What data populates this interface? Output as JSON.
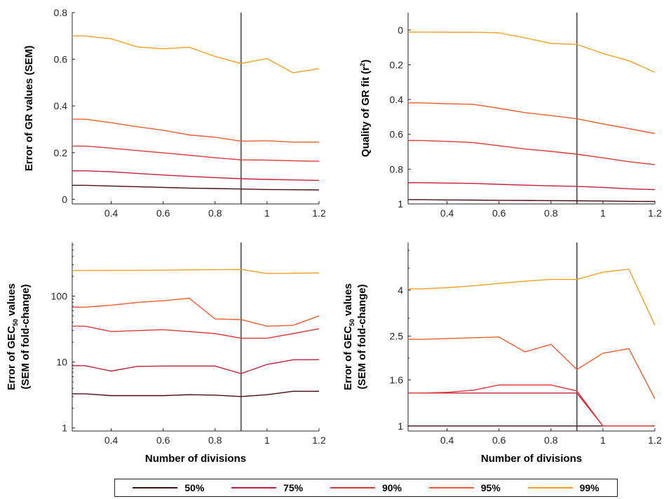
{
  "colors": {
    "50%": "#4a0d14",
    "75%": "#c4203a",
    "90%": "#dc3b36",
    "95%": "#ed5e2e",
    "99%": "#f0a225"
  },
  "legend": {
    "items": [
      "50%",
      "75%",
      "90%",
      "95%",
      "99%"
    ],
    "placement": "bottom"
  },
  "chart_data": [
    {
      "type": "line",
      "ylabel": "Error of GR values (SEM)",
      "xlabel": "",
      "xlim": [
        0.25,
        1.2
      ],
      "ylim": [
        -0.02,
        0.8
      ],
      "xticks": [
        "0.4",
        "0.6",
        "0.8",
        "1",
        "1.2"
      ],
      "yticks": [
        "0",
        "0.2",
        "0.4",
        "0.6",
        "0.8"
      ],
      "vline": 0.9,
      "x": [
        0.25,
        0.3,
        0.4,
        0.5,
        0.6,
        0.7,
        0.8,
        0.9,
        1.0,
        1.1,
        1.2
      ],
      "series": [
        {
          "name": "50%",
          "values": [
            0.06,
            0.06,
            0.057,
            0.054,
            0.051,
            0.048,
            0.046,
            0.044,
            0.042,
            0.041,
            0.04
          ]
        },
        {
          "name": "75%",
          "values": [
            0.122,
            0.122,
            0.118,
            0.111,
            0.104,
            0.098,
            0.093,
            0.088,
            0.085,
            0.083,
            0.081
          ]
        },
        {
          "name": "90%",
          "values": [
            0.228,
            0.228,
            0.219,
            0.209,
            0.199,
            0.189,
            0.178,
            0.169,
            0.168,
            0.165,
            0.163
          ]
        },
        {
          "name": "95%",
          "values": [
            0.343,
            0.343,
            0.328,
            0.311,
            0.296,
            0.276,
            0.266,
            0.249,
            0.251,
            0.245,
            0.245
          ]
        },
        {
          "name": "99%",
          "values": [
            0.7,
            0.7,
            0.688,
            0.653,
            0.645,
            0.652,
            0.612,
            0.582,
            0.603,
            0.542,
            0.56
          ]
        }
      ]
    },
    {
      "type": "line",
      "ylabel": "Quality of GR fit (r²)",
      "xlabel": "",
      "xlim": [
        0.25,
        1.2
      ],
      "ylim": [
        1,
        -0.1
      ],
      "yreverse": true,
      "xticks": [
        "0.4",
        "0.6",
        "0.8",
        "1",
        "1.2"
      ],
      "yticks": [
        "0",
        "0.2",
        "0.4",
        "0.6",
        "0.8",
        "1"
      ],
      "vline": 0.9,
      "x": [
        0.25,
        0.3,
        0.4,
        0.5,
        0.6,
        0.7,
        0.8,
        0.9,
        1.0,
        1.1,
        1.2
      ],
      "series": [
        {
          "name": "50%",
          "values": [
            0.975,
            0.975,
            0.977,
            0.978,
            0.979,
            0.98,
            0.981,
            0.982,
            0.983,
            0.985,
            0.986
          ]
        },
        {
          "name": "75%",
          "values": [
            0.878,
            0.878,
            0.88,
            0.882,
            0.887,
            0.892,
            0.896,
            0.899,
            0.905,
            0.913,
            0.918
          ]
        },
        {
          "name": "90%",
          "values": [
            0.635,
            0.635,
            0.64,
            0.647,
            0.665,
            0.684,
            0.698,
            0.714,
            0.735,
            0.757,
            0.774
          ]
        },
        {
          "name": "95%",
          "values": [
            0.419,
            0.419,
            0.424,
            0.427,
            0.45,
            0.475,
            0.492,
            0.51,
            0.54,
            0.567,
            0.595
          ]
        },
        {
          "name": "99%",
          "values": [
            0.012,
            0.012,
            0.013,
            0.013,
            0.016,
            0.045,
            0.077,
            0.083,
            0.135,
            0.177,
            0.243
          ]
        }
      ]
    },
    {
      "type": "line",
      "ylabel": "Error of GEC50 values",
      "ylabel2": "(SEM of fold-change)",
      "xlabel": "Number of divisions",
      "xlim": [
        0.25,
        1.2
      ],
      "ylim": [
        0.9,
        650
      ],
      "yscale": "log",
      "xticks": [
        "0.4",
        "0.6",
        "0.8",
        "1",
        "1.2"
      ],
      "yticks": [
        "1",
        "10",
        "100"
      ],
      "vline": 0.9,
      "x": [
        0.25,
        0.3,
        0.4,
        0.5,
        0.6,
        0.7,
        0.8,
        0.9,
        1.0,
        1.1,
        1.2
      ],
      "series": [
        {
          "name": "50%",
          "values": [
            3.3,
            3.3,
            3.1,
            3.1,
            3.1,
            3.2,
            3.15,
            3.0,
            3.2,
            3.6,
            3.6
          ]
        },
        {
          "name": "75%",
          "values": [
            8.8,
            8.8,
            7.3,
            8.6,
            8.7,
            8.7,
            8.7,
            6.7,
            9.2,
            10.8,
            10.9
          ]
        },
        {
          "name": "90%",
          "values": [
            35,
            35,
            29,
            30,
            31,
            29,
            27,
            23,
            23,
            27,
            32
          ]
        },
        {
          "name": "95%",
          "values": [
            68,
            68,
            73,
            80,
            85,
            93,
            45,
            44,
            35,
            36,
            50
          ]
        },
        {
          "name": "99%",
          "values": [
            245,
            245,
            246,
            246,
            248,
            250,
            252,
            254,
            220,
            222,
            225
          ]
        }
      ]
    },
    {
      "type": "line",
      "ylabel": "Error of GEC50 values",
      "ylabel2": "(SEM of fold-change)",
      "xlabel": "Number of divisions",
      "xlim": [
        0.25,
        1.2
      ],
      "ylim": [
        0.95,
        6.5
      ],
      "yscale": "log",
      "xticks": [
        "0.4",
        "0.6",
        "0.8",
        "1",
        "1.2"
      ],
      "yticks": [
        "1",
        "1.6",
        "2.5",
        "4"
      ],
      "vline": 0.9,
      "x": [
        0.25,
        0.3,
        0.4,
        0.5,
        0.6,
        0.7,
        0.8,
        0.9,
        1.0,
        1.1,
        1.2
      ],
      "series": [
        {
          "name": "50%",
          "values": [
            1,
            1,
            1,
            1,
            1,
            1,
            1,
            1,
            1,
            1,
            1
          ]
        },
        {
          "name": "75%",
          "values": [
            1.4,
            1.4,
            1.4,
            1.4,
            1.4,
            1.4,
            1.4,
            1.4,
            1,
            1,
            1
          ]
        },
        {
          "name": "90%",
          "values": [
            1.4,
            1.4,
            1.41,
            1.44,
            1.52,
            1.52,
            1.52,
            1.43,
            1,
            1,
            1
          ]
        },
        {
          "name": "95%",
          "values": [
            2.42,
            2.42,
            2.44,
            2.46,
            2.48,
            2.13,
            2.3,
            1.78,
            2.1,
            2.2,
            1.32
          ]
        },
        {
          "name": "99%",
          "values": [
            4.05,
            4.05,
            4.1,
            4.18,
            4.28,
            4.38,
            4.46,
            4.46,
            4.8,
            4.95,
            2.8
          ]
        }
      ]
    }
  ]
}
